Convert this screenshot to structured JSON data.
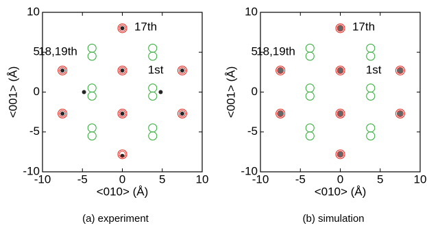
{
  "chart_data": [
    {
      "type": "scatter",
      "caption": "(a) experiment",
      "xlabel": "<010> (Å)",
      "ylabel": "<001> (Å)",
      "xlim": [
        -10,
        10
      ],
      "ylim": [
        -10,
        10
      ],
      "xticks": [
        -10,
        -5,
        0,
        5,
        10
      ],
      "yticks": [
        -10,
        -5,
        0,
        5,
        10
      ],
      "annotations": [
        "17th",
        "18,19th",
        "1st"
      ],
      "series": [
        {
          "color": "#000000",
          "x": [
            0,
            0,
            -4.8,
            4.8,
            -7.5,
            7.5,
            -7.5,
            7.5,
            0,
            0
          ],
          "values": [
            8,
            -8,
            0,
            0,
            2.7,
            2.7,
            -2.7,
            -2.7,
            2.7,
            -2.7
          ]
        },
        {
          "color": "#e8302a",
          "x": [
            0,
            0,
            0,
            0,
            -7.5,
            7.5,
            -7.5,
            7.5
          ],
          "values": [
            8,
            2.7,
            -2.7,
            -7.8,
            2.7,
            2.7,
            -2.7,
            -2.7
          ]
        },
        {
          "color": "#3cb043",
          "x": [
            -3.8,
            -3.8,
            3.8,
            3.8,
            -3.8,
            -3.8,
            3.8,
            3.8,
            -3.8,
            -3.8,
            3.8,
            3.8
          ],
          "values": [
            5.5,
            4.5,
            5.5,
            4.5,
            0.5,
            -0.5,
            0.5,
            -0.5,
            -4.5,
            -5.5,
            -4.5,
            -5.5
          ]
        }
      ]
    },
    {
      "type": "scatter",
      "caption": "(b) simulation",
      "xlabel": "<010> (Å)",
      "ylabel": "<001> (Å)",
      "xlim": [
        -10,
        10
      ],
      "ylim": [
        -10,
        10
      ],
      "xticks": [
        -10,
        -5,
        0,
        5,
        10
      ],
      "yticks": [
        -10,
        -5,
        0,
        5,
        10
      ],
      "annotations": [
        "17th",
        "18,19th",
        "1st"
      ],
      "series": [
        {
          "color": "#000000",
          "x": [
            0,
            0,
            -7.5,
            7.5,
            -7.5,
            7.5,
            0,
            0
          ],
          "values": [
            2.7,
            -2.7,
            2.7,
            2.7,
            -2.7,
            -2.7,
            8,
            -7.8
          ]
        },
        {
          "color": "#e8302a",
          "x": [
            0,
            0,
            0,
            0,
            -7.5,
            7.5,
            -7.5,
            7.5
          ],
          "values": [
            8,
            2.7,
            -2.7,
            -7.8,
            2.7,
            2.7,
            -2.7,
            -2.7
          ]
        },
        {
          "color": "#3cb043",
          "x": [
            -3.8,
            -3.8,
            3.8,
            3.8,
            -3.8,
            -3.8,
            3.8,
            3.8,
            -3.8,
            -3.8,
            3.8,
            3.8
          ],
          "values": [
            5.5,
            4.5,
            5.5,
            4.5,
            0.5,
            -0.5,
            0.5,
            -0.5,
            -4.5,
            -5.5,
            -4.5,
            -5.5
          ]
        }
      ]
    }
  ]
}
